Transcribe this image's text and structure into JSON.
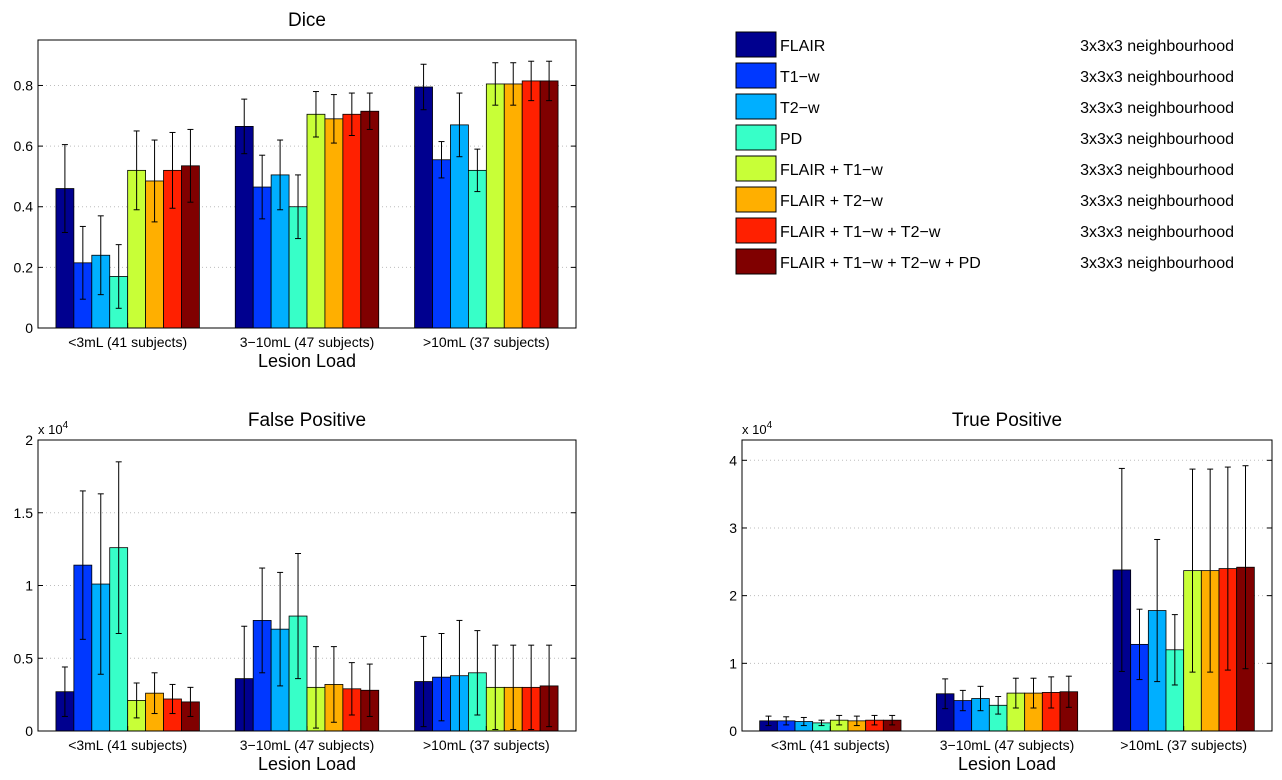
{
  "legend": {
    "placement": "top-right",
    "entries": [
      {
        "label": "FLAIR",
        "note": "3x3x3 neighbourhood",
        "color": "#00008F"
      },
      {
        "label": "T1−w",
        "note": "3x3x3 neighbourhood",
        "color": "#0038FF"
      },
      {
        "label": "T2−w",
        "note": "3x3x3 neighbourhood",
        "color": "#00AFFF"
      },
      {
        "label": "PD",
        "note": "3x3x3 neighbourhood",
        "color": "#37FFC8"
      },
      {
        "label": "FLAIR + T1−w",
        "note": "3x3x3 neighbourhood",
        "color": "#C8FF37"
      },
      {
        "label": "FLAIR + T2−w",
        "note": "3x3x3 neighbourhood",
        "color": "#FFAF00"
      },
      {
        "label": "FLAIR + T1−w + T2−w",
        "note": "3x3x3 neighbourhood",
        "color": "#FF2000"
      },
      {
        "label": "FLAIR + T1−w + T2−w + PD",
        "note": "3x3x3 neighbourhood",
        "color": "#800000"
      }
    ]
  },
  "chart_data": [
    {
      "id": "dice",
      "type": "bar",
      "title": "Dice",
      "xlabel": "Lesion Load",
      "ylabel": "",
      "exponent_label": "",
      "categories": [
        "<3mL (41 subjects)",
        "3−10mL (47 subjects)",
        ">10mL (37 subjects)"
      ],
      "ylim": [
        0,
        0.95
      ],
      "yticks": [
        0,
        0.2,
        0.4,
        0.6,
        0.8
      ],
      "ytick_labels": [
        "0",
        "0.2",
        "0.4",
        "0.6",
        "0.8"
      ],
      "grid": "horizontal-dotted",
      "series": [
        {
          "name": "FLAIR",
          "values": [
            0.46,
            0.665,
            0.795
          ],
          "errors": [
            0.145,
            0.09,
            0.075
          ]
        },
        {
          "name": "T1−w",
          "values": [
            0.215,
            0.465,
            0.555
          ],
          "errors": [
            0.12,
            0.105,
            0.06
          ]
        },
        {
          "name": "T2−w",
          "values": [
            0.24,
            0.505,
            0.67
          ],
          "errors": [
            0.13,
            0.115,
            0.105
          ]
        },
        {
          "name": "PD",
          "values": [
            0.17,
            0.4,
            0.52
          ],
          "errors": [
            0.105,
            0.105,
            0.07
          ]
        },
        {
          "name": "FLAIR + T1−w",
          "values": [
            0.52,
            0.705,
            0.805
          ],
          "errors": [
            0.13,
            0.075,
            0.07
          ]
        },
        {
          "name": "FLAIR + T2−w",
          "values": [
            0.485,
            0.69,
            0.805
          ],
          "errors": [
            0.135,
            0.08,
            0.07
          ]
        },
        {
          "name": "FLAIR + T1−w + T2−w",
          "values": [
            0.52,
            0.705,
            0.815
          ],
          "errors": [
            0.125,
            0.07,
            0.065
          ]
        },
        {
          "name": "FLAIR + T1−w + T2−w + PD",
          "values": [
            0.535,
            0.715,
            0.815
          ],
          "errors": [
            0.12,
            0.06,
            0.065
          ]
        }
      ]
    },
    {
      "id": "false-positive",
      "type": "bar",
      "title": "False Positive",
      "xlabel": "Lesion Load",
      "ylabel": "",
      "exponent_label": "x 10",
      "exponent_power": "4",
      "categories": [
        "<3mL (41 subjects)",
        "3−10mL (47 subjects)",
        ">10mL (37 subjects)"
      ],
      "ylim": [
        0,
        20000
      ],
      "yticks": [
        0,
        5000,
        10000,
        15000,
        20000
      ],
      "ytick_labels": [
        "0",
        "0.5",
        "1",
        "1.5",
        "2"
      ],
      "grid": "horizontal-dotted",
      "series": [
        {
          "name": "FLAIR",
          "values": [
            2700,
            3600,
            3400
          ],
          "errors": [
            1700,
            3600,
            3100
          ]
        },
        {
          "name": "T1−w",
          "values": [
            11400,
            7600,
            3700
          ],
          "errors": [
            5100,
            3600,
            3000
          ]
        },
        {
          "name": "T2−w",
          "values": [
            10100,
            7000,
            3800
          ],
          "errors": [
            6200,
            3900,
            3800
          ]
        },
        {
          "name": "PD",
          "values": [
            12600,
            7900,
            4000
          ],
          "errors": [
            5900,
            4300,
            2900
          ]
        },
        {
          "name": "FLAIR + T1−w",
          "values": [
            2100,
            3000,
            3000
          ],
          "errors": [
            1200,
            2800,
            2900
          ]
        },
        {
          "name": "FLAIR + T2−w",
          "values": [
            2600,
            3200,
            3000
          ],
          "errors": [
            1400,
            2600,
            2900
          ]
        },
        {
          "name": "FLAIR + T1−w + T2−w",
          "values": [
            2200,
            2900,
            3000
          ],
          "errors": [
            1000,
            1800,
            2900
          ]
        },
        {
          "name": "FLAIR + T1−w + T2−w + PD",
          "values": [
            2000,
            2800,
            3100
          ],
          "errors": [
            1000,
            1800,
            2800
          ]
        }
      ]
    },
    {
      "id": "true-positive",
      "type": "bar",
      "title": "True Positive",
      "xlabel": "Lesion Load",
      "ylabel": "",
      "exponent_label": "x 10",
      "exponent_power": "4",
      "categories": [
        "<3mL (41 subjects)",
        "3−10mL (47 subjects)",
        ">10mL (37 subjects)"
      ],
      "ylim": [
        0,
        43000
      ],
      "yticks": [
        0,
        10000,
        20000,
        30000,
        40000
      ],
      "ytick_labels": [
        "0",
        "1",
        "2",
        "3",
        "4"
      ],
      "grid": "horizontal-dotted",
      "series": [
        {
          "name": "FLAIR",
          "values": [
            1500,
            5500,
            23800
          ],
          "errors": [
            700,
            2200,
            15000
          ]
        },
        {
          "name": "T1−w",
          "values": [
            1500,
            4500,
            12800
          ],
          "errors": [
            600,
            1500,
            5200
          ]
        },
        {
          "name": "T2−w",
          "values": [
            1400,
            4800,
            17800
          ],
          "errors": [
            600,
            1800,
            10500
          ]
        },
        {
          "name": "PD",
          "values": [
            1200,
            3800,
            12000
          ],
          "errors": [
            400,
            1300,
            5200
          ]
        },
        {
          "name": "FLAIR + T1−w",
          "values": [
            1600,
            5600,
            23700
          ],
          "errors": [
            700,
            2200,
            15000
          ]
        },
        {
          "name": "FLAIR + T2−w",
          "values": [
            1500,
            5600,
            23700
          ],
          "errors": [
            700,
            2200,
            15000
          ]
        },
        {
          "name": "FLAIR + T1−w + T2−w",
          "values": [
            1600,
            5700,
            24000
          ],
          "errors": [
            700,
            2300,
            15000
          ]
        },
        {
          "name": "FLAIR + T1−w + T2−w + PD",
          "values": [
            1600,
            5800,
            24200
          ],
          "errors": [
            700,
            2300,
            15000
          ]
        }
      ]
    }
  ]
}
